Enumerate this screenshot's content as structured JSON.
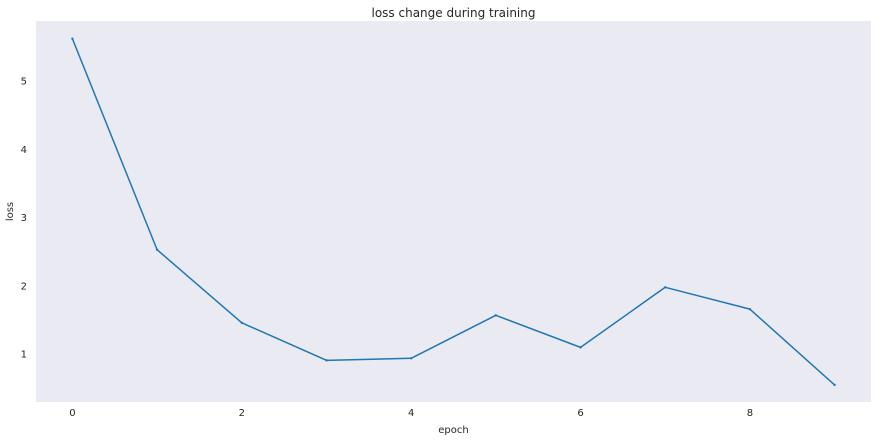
{
  "chart_data": {
    "type": "line",
    "title": "loss change during training",
    "xlabel": "epoch",
    "ylabel": "loss",
    "x": [
      0,
      1,
      2,
      3,
      4,
      5,
      6,
      7,
      8,
      9
    ],
    "series": [
      {
        "values": [
          5.62,
          2.53,
          1.46,
          0.91,
          0.94,
          1.57,
          1.1,
          1.98,
          1.66,
          0.55
        ]
      }
    ],
    "x_ticks": [
      0,
      2,
      4,
      6,
      8
    ],
    "y_ticks": [
      1,
      2,
      3,
      4,
      5
    ],
    "xlim": [
      -0.43,
      9.43
    ],
    "ylim": [
      0.3,
      5.88
    ],
    "grid": false,
    "legend": "none",
    "background_color": "#eaeaf2",
    "line_color": "#1f77b4"
  }
}
